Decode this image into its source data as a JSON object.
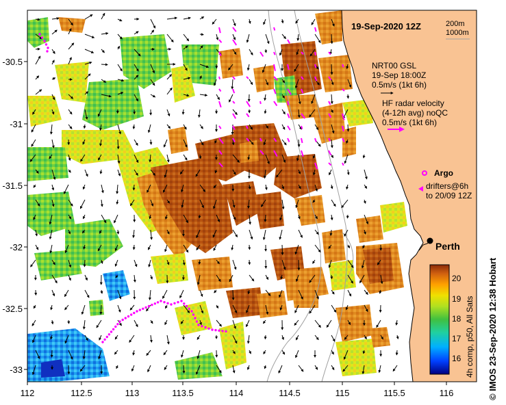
{
  "map": {
    "date_label": "19-Sep-2020 12Z",
    "depth_labels": [
      "200m",
      "1000m"
    ],
    "model_label": [
      "NRT00 GSL",
      "19-Sep 18:00Z",
      "0.5m/s (1kt 6h)"
    ],
    "radar_label": [
      "HF radar velocity",
      "(4-12h avg) noQC",
      "0.5m/s (1kt 6h)"
    ],
    "argo_label": "Argo",
    "drifter_label": [
      "drifters@6h",
      "to 20/09 12Z"
    ],
    "city": "Perth",
    "credit": "©  IMOS 23-Sep-2020 12:38 Hobart",
    "colorbar_caption": "4h comp, p50, All Sats",
    "colorbar_ticks": [
      "20",
      "19",
      "18",
      "17",
      "16"
    ],
    "x_ticks": [
      "112",
      "112.5",
      "113",
      "113.5",
      "114",
      "114.5",
      "115",
      "115.5",
      "116"
    ],
    "y_ticks": [
      "-30.5",
      "-31",
      "-31.5",
      "-32",
      "-32.5",
      "-33"
    ],
    "colors": {
      "land": "#f9c393",
      "drifter": "#ff00ff",
      "radar_arrow": "#ff00ff",
      "arrow": "#000000",
      "isobath": "#a0a0a0"
    }
  }
}
